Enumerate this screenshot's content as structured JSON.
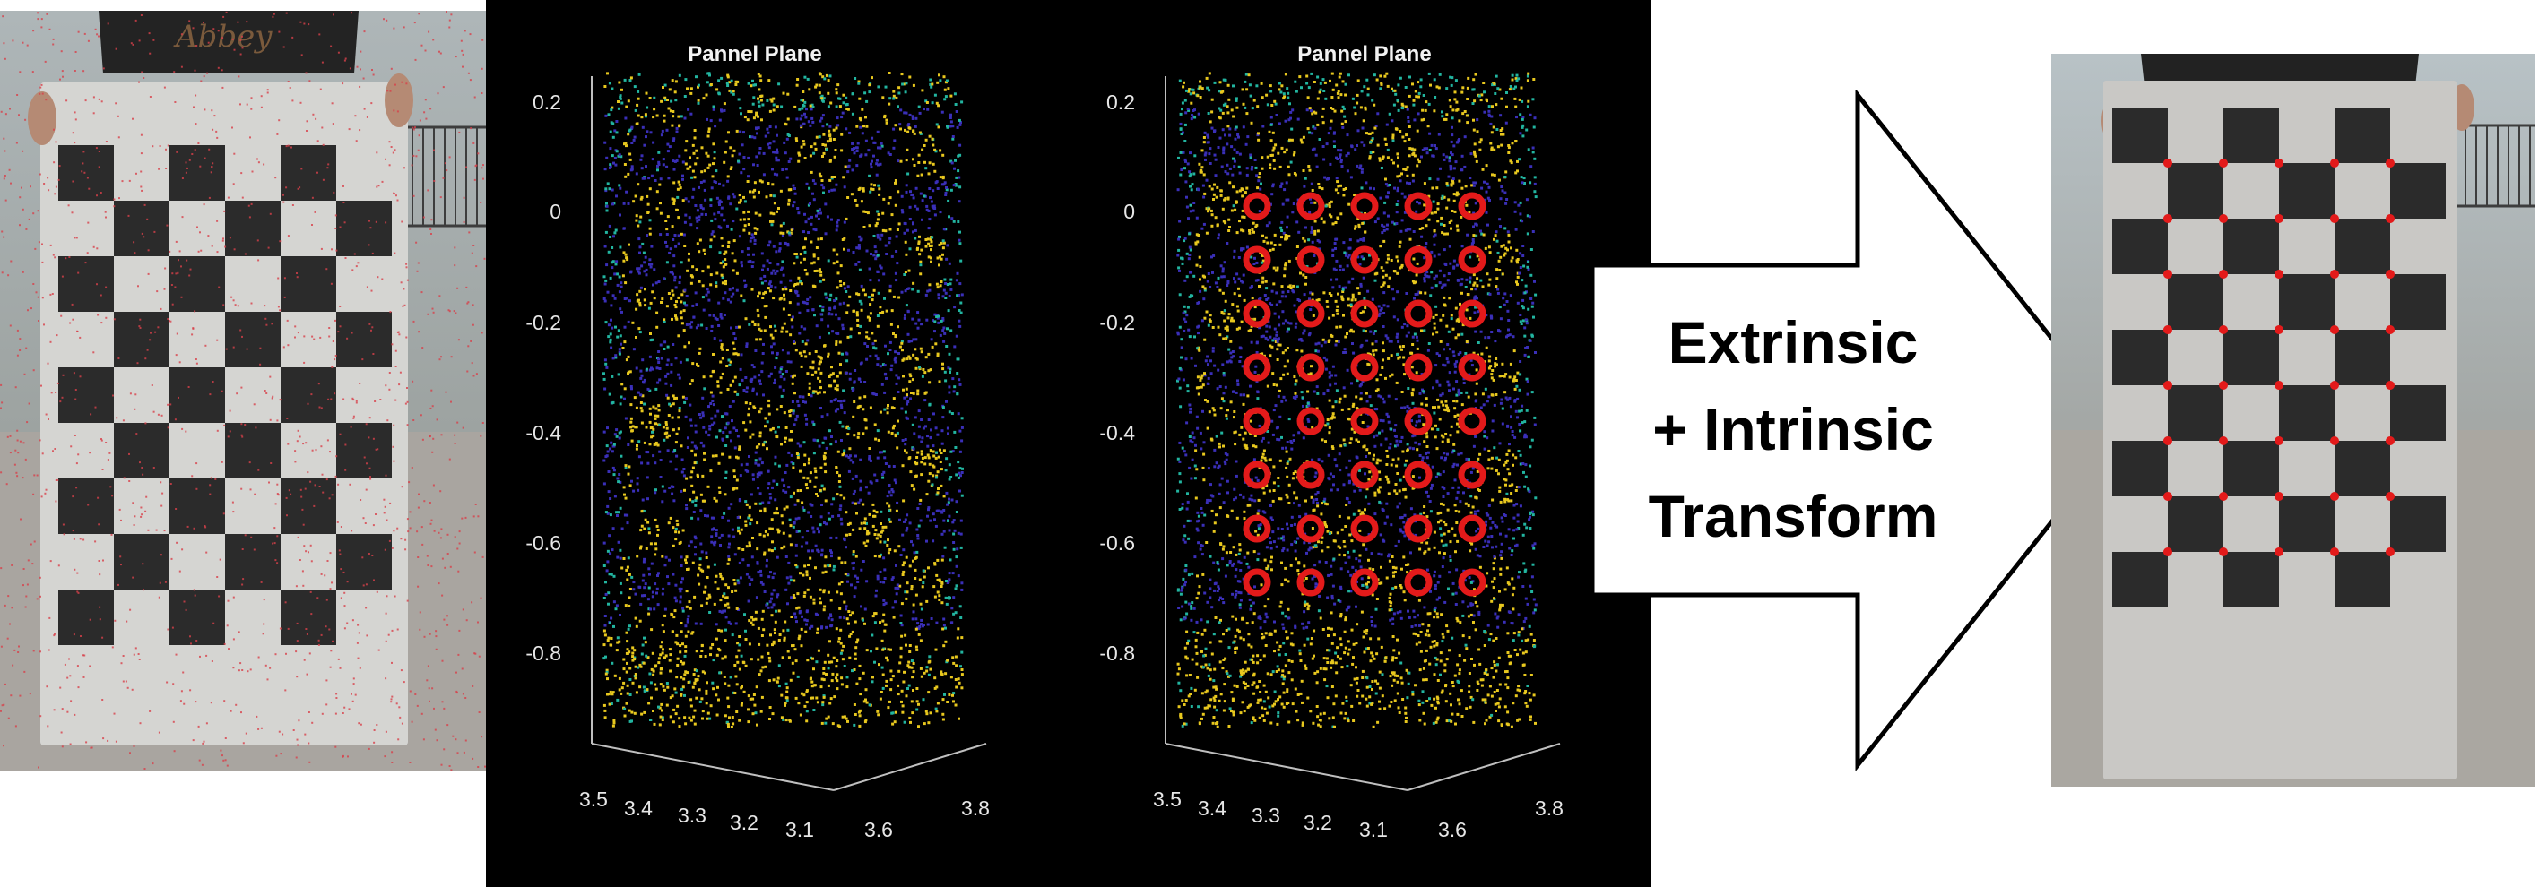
{
  "plots": [
    {
      "title": "Pannel Plane",
      "yticks": [
        "0.2",
        "0",
        "-0.2",
        "-0.4",
        "-0.6",
        "-0.8"
      ],
      "xticks_left": [
        "3.5",
        "3.4",
        "3.3",
        "3.2",
        "3.1"
      ],
      "xticks_right": [
        "3.6",
        "3.8"
      ],
      "corners_shown": false
    },
    {
      "title": "Pannel Plane",
      "yticks": [
        "0.2",
        "0",
        "-0.2",
        "-0.4",
        "-0.6",
        "-0.8"
      ],
      "xticks_left": [
        "3.5",
        "3.4",
        "3.3",
        "3.2",
        "3.1"
      ],
      "xticks_right": [
        "3.6",
        "3.8"
      ],
      "corners_shown": true
    }
  ],
  "arrow": {
    "lines": [
      "Extrinsic",
      "+ Intrinsic",
      "Transform"
    ]
  },
  "photo_left": {
    "sign_text": "Abbey"
  },
  "colors": {
    "point_yellow": "#e8c81e",
    "point_blue": "#3a2fb8",
    "point_teal": "#22b5a0",
    "corner_red": "#e31a1a",
    "board_dark": "#2b2b2b",
    "board_light": "#d5d5d2",
    "plot_bg": "#000000"
  }
}
